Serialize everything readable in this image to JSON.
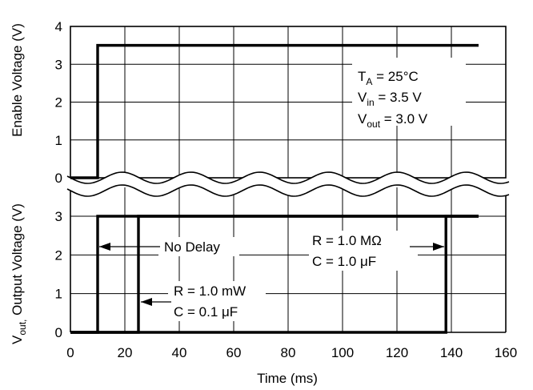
{
  "chart_data": {
    "type": "line",
    "xlabel": "Time (ms)",
    "x_ticks": [
      0,
      20,
      40,
      60,
      80,
      100,
      120,
      140,
      160
    ],
    "xlim": [
      0,
      160
    ],
    "grid": true,
    "panels": [
      {
        "name": "enable",
        "ylabel": "Enable Voltage (V)",
        "ylim": [
          0,
          4
        ],
        "y_ticks": [
          0,
          1,
          2,
          3,
          4
        ],
        "series": [
          {
            "x": [
              0,
              10,
              10,
              150
            ],
            "y": [
              0,
              0,
              3.5,
              3.5
            ]
          }
        ]
      },
      {
        "name": "output",
        "ylabel_main": "V",
        "ylabel_sub": "out,",
        "ylabel_rest": " Output Voltage (V)",
        "ylim": [
          0,
          3
        ],
        "y_ticks": [
          0,
          1,
          2,
          3
        ],
        "series": [
          {
            "x": [
              0,
              10,
              10,
              150
            ],
            "y": [
              0,
              0,
              3,
              3
            ]
          },
          {
            "x": [
              0,
              25,
              25,
              150
            ],
            "y": [
              0,
              0,
              3,
              3
            ]
          },
          {
            "x": [
              0,
              138,
              138,
              150
            ],
            "y": [
              0,
              0,
              3,
              3
            ]
          }
        ]
      }
    ],
    "conditions": {
      "ta_main": "T",
      "ta_sub": "A",
      "ta_rest": " = 25°C",
      "vin_main": "V",
      "vin_sub": "in",
      "vin_rest": " = 3.5 V",
      "vout_main": "V",
      "vout_sub": "out",
      "vout_rest": " = 3.0 V"
    },
    "annotations": {
      "no_delay": "No Delay",
      "r_mohm": "R = 1.0 MΩ",
      "c_1uf": "C = 1.0 μF",
      "r_mw": "R = 1.0 mW",
      "c_01uf": "C = 0.1 μF"
    }
  }
}
